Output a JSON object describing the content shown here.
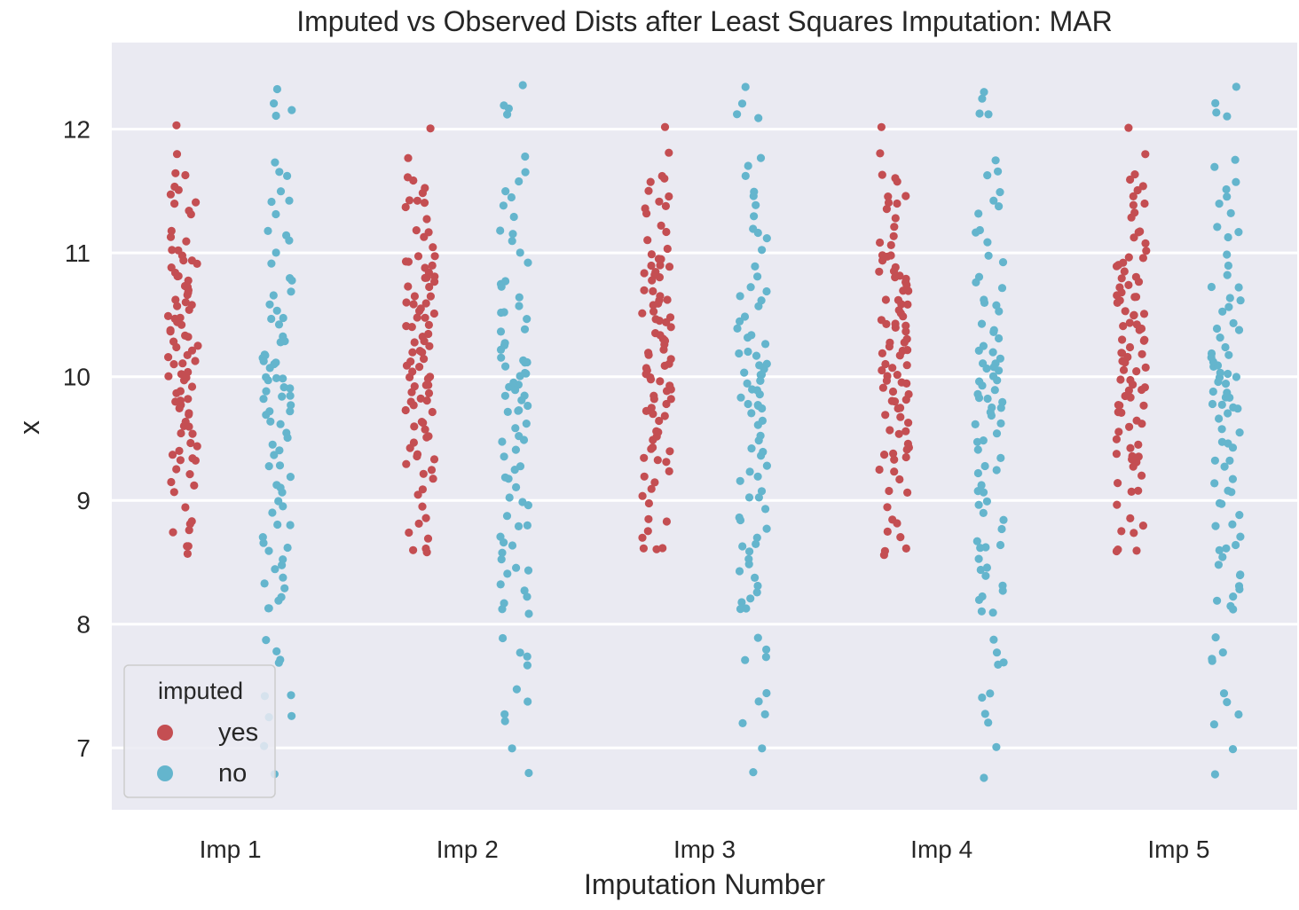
{
  "chart_data": {
    "type": "scatter",
    "subtype": "strip",
    "title": "Imputed vs Observed Dists after Least Squares Imputation: MAR",
    "xlabel": "Imputation Number",
    "ylabel": "x",
    "categories": [
      "Imp 1",
      "Imp 2",
      "Imp 3",
      "Imp 4",
      "Imp 5"
    ],
    "ylim": [
      6.5,
      12.7
    ],
    "yticks": [
      7,
      8,
      9,
      10,
      11,
      12
    ],
    "grid": true,
    "background": "#eaeaf2",
    "legend": {
      "title": "imputed",
      "position": "lower-left",
      "entries": [
        {
          "label": "yes",
          "color": "#c44e52"
        },
        {
          "label": "no",
          "color": "#64b5cd"
        }
      ]
    },
    "series": [
      {
        "name": "yes",
        "color": "#c44e52",
        "values": [
          8.58,
          8.6,
          8.62,
          8.72,
          8.74,
          8.82,
          8.85,
          8.96,
          9.05,
          9.1,
          9.15,
          9.22,
          9.26,
          9.3,
          9.33,
          9.36,
          9.38,
          9.4,
          9.44,
          9.48,
          9.52,
          9.55,
          9.58,
          9.62,
          9.66,
          9.7,
          9.72,
          9.75,
          9.78,
          9.8,
          9.82,
          9.85,
          9.88,
          9.9,
          9.92,
          9.95,
          9.98,
          10.0,
          10.02,
          10.05,
          10.08,
          10.1,
          10.12,
          10.15,
          10.18,
          10.2,
          10.22,
          10.25,
          10.28,
          10.3,
          10.32,
          10.35,
          10.38,
          10.4,
          10.42,
          10.45,
          10.48,
          10.5,
          10.52,
          10.55,
          10.58,
          10.6,
          10.62,
          10.65,
          10.68,
          10.7,
          10.72,
          10.75,
          10.78,
          10.8,
          10.82,
          10.85,
          10.88,
          10.9,
          10.92,
          10.95,
          10.98,
          11.0,
          11.05,
          11.1,
          11.15,
          11.2,
          11.3,
          11.35,
          11.4,
          11.42,
          11.45,
          11.48,
          11.55,
          11.6,
          11.63,
          11.78,
          12.03
        ]
      },
      {
        "name": "no",
        "color": "#64b5cd",
        "values": [
          6.78,
          7.0,
          7.22,
          7.25,
          7.4,
          7.45,
          7.68,
          7.72,
          7.78,
          7.9,
          8.1,
          8.12,
          8.18,
          8.22,
          8.28,
          8.32,
          8.38,
          8.42,
          8.48,
          8.55,
          8.6,
          8.62,
          8.65,
          8.7,
          8.78,
          8.82,
          8.88,
          8.95,
          9.0,
          9.05,
          9.1,
          9.15,
          9.2,
          9.25,
          9.3,
          9.35,
          9.4,
          9.45,
          9.5,
          9.55,
          9.6,
          9.65,
          9.7,
          9.72,
          9.75,
          9.78,
          9.8,
          9.82,
          9.85,
          9.88,
          9.9,
          9.92,
          9.95,
          9.98,
          10.0,
          10.02,
          10.05,
          10.08,
          10.1,
          10.12,
          10.15,
          10.18,
          10.2,
          10.25,
          10.3,
          10.35,
          10.4,
          10.45,
          10.5,
          10.55,
          10.6,
          10.65,
          10.7,
          10.75,
          10.8,
          10.9,
          11.0,
          11.1,
          11.15,
          11.2,
          11.3,
          11.4,
          11.45,
          11.5,
          11.6,
          11.68,
          11.75,
          12.1,
          12.15,
          12.22,
          12.33
        ]
      }
    ]
  }
}
